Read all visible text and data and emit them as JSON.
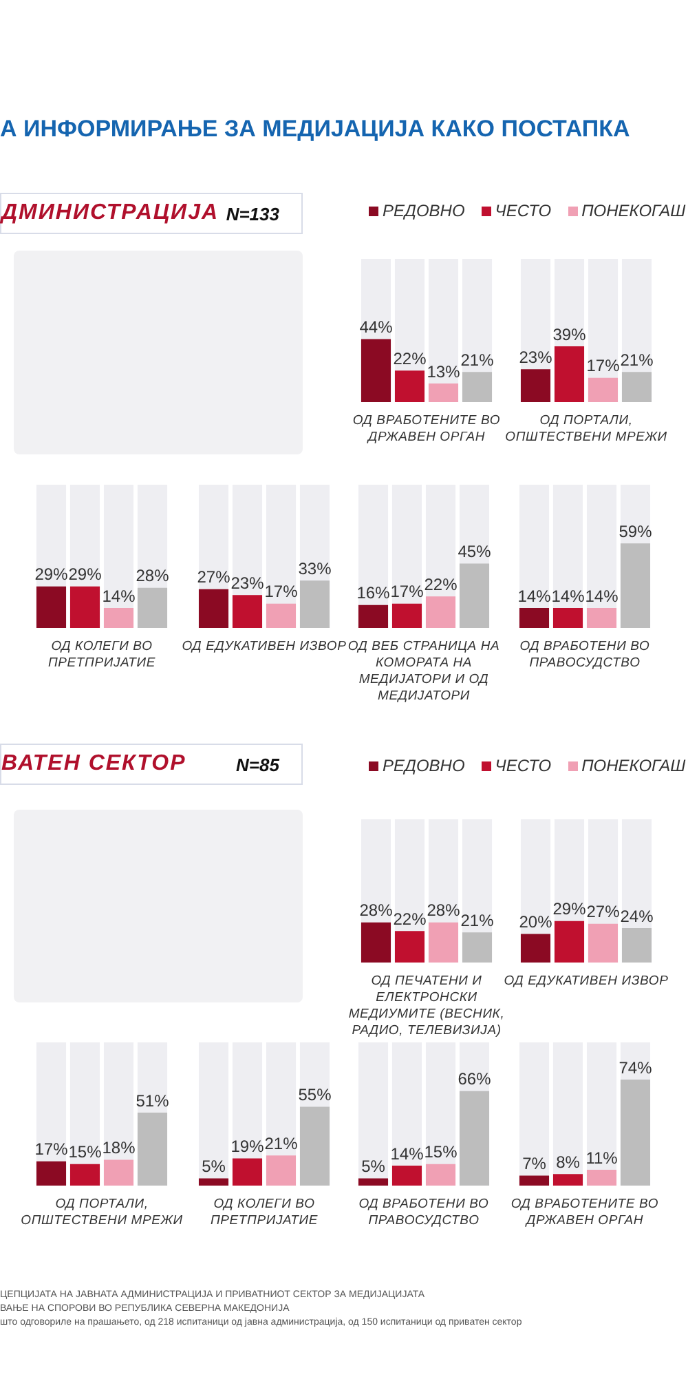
{
  "chart_data": [
    {
      "type": "other",
      "title": "А ИНФОРМИРАЊЕ ЗА МЕДИЈАЦИЈА КАКО ПОСТАПКА"
    },
    {
      "type": "other",
      "title": "ДМИНИСТРАЦИЈА",
      "subtitle": "N=133"
    },
    {
      "type": "bar",
      "xlabel": "ОД ВРАБОТЕНИТЕ ВО ДРЖАВЕН ОРГАН",
      "categories": [
        null
      ],
      "ylim": [
        0,
        100
      ],
      "tick_labels": false,
      "legend": "top",
      "series": [
        {
          "name": "РЕДОВНО",
          "color": "#8b0a23",
          "values": [
            44
          ],
          "value_labels": [
            "44%"
          ]
        },
        {
          "name": "ЧЕСТО",
          "color": "#c0102f",
          "values": [
            22
          ],
          "value_labels": [
            "22%"
          ]
        },
        {
          "name": "ПОНЕКОГАШ",
          "color": "#f0a0b4",
          "values": [
            13
          ],
          "value_labels": [
            "13%"
          ]
        },
        {
          "color": "#bdbdbd",
          "values": [
            21
          ],
          "value_labels": [
            "21%"
          ]
        }
      ]
    },
    {
      "type": "bar",
      "xlabel": "ОД ПОРТАЛИ, ОПШТЕСТВЕНИ МРЕЖИ",
      "categories": [
        null
      ],
      "ylim": [
        0,
        100
      ],
      "tick_labels": false,
      "series": [
        {
          "color": "#8b0a23",
          "values": [
            23
          ],
          "value_labels": [
            "23%"
          ]
        },
        {
          "color": "#c0102f",
          "values": [
            39
          ],
          "value_labels": [
            "39%"
          ]
        },
        {
          "color": "#f0a0b4",
          "values": [
            17
          ],
          "value_labels": [
            "17%"
          ]
        },
        {
          "color": "#bdbdbd",
          "values": [
            21
          ],
          "value_labels": [
            "21%"
          ]
        }
      ]
    },
    {
      "type": "bar",
      "xlabel": "ОД КОЛЕГИ ВО ПРЕТПРИЈАТИЕ",
      "categories": [
        null
      ],
      "ylim": [
        0,
        100
      ],
      "tick_labels": false,
      "series": [
        {
          "color": "#8b0a23",
          "values": [
            29
          ],
          "value_labels": [
            "29%"
          ]
        },
        {
          "color": "#c0102f",
          "values": [
            29
          ],
          "value_labels": [
            "29%"
          ]
        },
        {
          "color": "#f0a0b4",
          "values": [
            14
          ],
          "value_labels": [
            "14%"
          ]
        },
        {
          "color": "#bdbdbd",
          "values": [
            28
          ],
          "value_labels": [
            "28%"
          ]
        }
      ]
    },
    {
      "type": "bar",
      "xlabel": "ОД ЕДУКАТИВЕН ИЗВОР",
      "categories": [
        null
      ],
      "ylim": [
        0,
        100
      ],
      "tick_labels": false,
      "series": [
        {
          "color": "#8b0a23",
          "values": [
            27
          ],
          "value_labels": [
            "27%"
          ]
        },
        {
          "color": "#c0102f",
          "values": [
            23
          ],
          "value_labels": [
            "23%"
          ]
        },
        {
          "color": "#f0a0b4",
          "values": [
            17
          ],
          "value_labels": [
            "17%"
          ]
        },
        {
          "color": "#bdbdbd",
          "values": [
            33
          ],
          "value_labels": [
            "33%"
          ]
        }
      ]
    },
    {
      "type": "bar",
      "xlabel": "ОД ВЕБ СТРАНИЦА НА КОМОРАТА НА МЕДИЈАТОРИ И ОД МЕДИЈАТОРИ",
      "categories": [
        null
      ],
      "ylim": [
        0,
        100
      ],
      "tick_labels": false,
      "series": [
        {
          "color": "#8b0a23",
          "values": [
            16
          ],
          "value_labels": [
            "16%"
          ]
        },
        {
          "color": "#c0102f",
          "values": [
            17
          ],
          "value_labels": [
            "17%"
          ]
        },
        {
          "color": "#f0a0b4",
          "values": [
            22
          ],
          "value_labels": [
            "22%"
          ]
        },
        {
          "color": "#bdbdbd",
          "values": [
            45
          ],
          "value_labels": [
            "45%"
          ]
        }
      ]
    },
    {
      "type": "bar",
      "xlabel": "ОД ВРАБОТЕНИ ВО ПРАВОСУДСТВО",
      "categories": [
        null
      ],
      "ylim": [
        0,
        100
      ],
      "tick_labels": false,
      "series": [
        {
          "color": "#8b0a23",
          "values": [
            14
          ],
          "value_labels": [
            "14%"
          ]
        },
        {
          "color": "#c0102f",
          "values": [
            14
          ],
          "value_labels": [
            "14%"
          ]
        },
        {
          "color": "#f0a0b4",
          "values": [
            14
          ],
          "value_labels": [
            "14%"
          ]
        },
        {
          "color": "#bdbdbd",
          "values": [
            59
          ],
          "value_labels": [
            "59%"
          ]
        }
      ]
    },
    {
      "type": "other",
      "title": "ВАТЕН СЕКТОР",
      "subtitle": "N=85"
    },
    {
      "type": "bar",
      "xlabel": "ОД ПЕЧАТЕНИ И ЕЛЕКТРОНСКИ МЕДИУМИТЕ (ВЕСНИК, РАДИО, ТЕЛЕВИЗИЈА)",
      "categories": [
        null
      ],
      "ylim": [
        0,
        100
      ],
      "tick_labels": false,
      "legend": "top",
      "series": [
        {
          "name": "РЕДОВНО",
          "color": "#8b0a23",
          "values": [
            28
          ],
          "value_labels": [
            "28%"
          ]
        },
        {
          "name": "ЧЕСТО",
          "color": "#c0102f",
          "values": [
            22
          ],
          "value_labels": [
            "22%"
          ]
        },
        {
          "name": "ПОНЕКОГАШ",
          "color": "#f0a0b4",
          "values": [
            28
          ],
          "value_labels": [
            "28%"
          ]
        },
        {
          "color": "#bdbdbd",
          "values": [
            21
          ],
          "value_labels": [
            "21%"
          ]
        }
      ]
    },
    {
      "type": "bar",
      "xlabel": "ОД ЕДУКАТИВЕН ИЗВОР",
      "categories": [
        null
      ],
      "ylim": [
        0,
        100
      ],
      "tick_labels": false,
      "series": [
        {
          "color": "#8b0a23",
          "values": [
            20
          ],
          "value_labels": [
            "20%"
          ]
        },
        {
          "color": "#c0102f",
          "values": [
            29
          ],
          "value_labels": [
            "29%"
          ]
        },
        {
          "color": "#f0a0b4",
          "values": [
            27
          ],
          "value_labels": [
            "27%"
          ]
        },
        {
          "color": "#bdbdbd",
          "values": [
            24
          ],
          "value_labels": [
            "24%"
          ]
        }
      ]
    },
    {
      "type": "bar",
      "xlabel": "ОД ПОРТАЛИ, ОПШТЕСТВЕНИ МРЕЖИ",
      "categories": [
        null
      ],
      "ylim": [
        0,
        100
      ],
      "tick_labels": false,
      "series": [
        {
          "color": "#8b0a23",
          "values": [
            17
          ],
          "value_labels": [
            "17%"
          ]
        },
        {
          "color": "#c0102f",
          "values": [
            15
          ],
          "value_labels": [
            "15%"
          ]
        },
        {
          "color": "#f0a0b4",
          "values": [
            18
          ],
          "value_labels": [
            "18%"
          ]
        },
        {
          "color": "#bdbdbd",
          "values": [
            51
          ],
          "value_labels": [
            "51%"
          ]
        }
      ]
    },
    {
      "type": "bar",
      "xlabel": "ОД КОЛЕГИ ВО ПРЕТПРИЈАТИЕ",
      "categories": [
        null
      ],
      "ylim": [
        0,
        100
      ],
      "tick_labels": false,
      "series": [
        {
          "color": "#8b0a23",
          "values": [
            5
          ],
          "value_labels": [
            "5%"
          ]
        },
        {
          "color": "#c0102f",
          "values": [
            19
          ],
          "value_labels": [
            "19%"
          ]
        },
        {
          "color": "#f0a0b4",
          "values": [
            21
          ],
          "value_labels": [
            "21%"
          ]
        },
        {
          "color": "#bdbdbd",
          "values": [
            55
          ],
          "value_labels": [
            "55%"
          ]
        }
      ]
    },
    {
      "type": "bar",
      "xlabel": "ОД ВРАБОТЕНИ ВО ПРАВОСУДСТВО",
      "categories": [
        null
      ],
      "ylim": [
        0,
        100
      ],
      "tick_labels": false,
      "series": [
        {
          "color": "#8b0a23",
          "values": [
            5
          ],
          "value_labels": [
            "5%"
          ]
        },
        {
          "color": "#c0102f",
          "values": [
            14
          ],
          "value_labels": [
            "14%"
          ]
        },
        {
          "color": "#f0a0b4",
          "values": [
            15
          ],
          "value_labels": [
            "15%"
          ]
        },
        {
          "color": "#bdbdbd",
          "values": [
            66
          ],
          "value_labels": [
            "66%"
          ]
        }
      ]
    },
    {
      "type": "bar",
      "xlabel": "ОД ВРАБОТЕНИТЕ ВО ДРЖАВЕН ОРГАН",
      "categories": [
        null
      ],
      "ylim": [
        0,
        100
      ],
      "tick_labels": false,
      "series": [
        {
          "color": "#8b0a23",
          "values": [
            7
          ],
          "value_labels": [
            "7%"
          ]
        },
        {
          "color": "#c0102f",
          "values": [
            8
          ],
          "value_labels": [
            "8%"
          ]
        },
        {
          "color": "#f0a0b4",
          "values": [
            11
          ],
          "value_labels": [
            "11%"
          ]
        },
        {
          "color": "#bdbdbd",
          "values": [
            74
          ],
          "value_labels": [
            "74%"
          ]
        }
      ]
    },
    {
      "type": "other",
      "annotations": [
        "ЦЕПЦИЈАТА НА ЈАВНАТА АДМИНИСТРАЦИЈА И ПРИВАТНИОТ СЕКТОР ЗА МЕДИЈАЦИЈАТА",
        "ВАЊЕ НА СПОРОВИ ВО РЕПУБЛИКА СЕВЕРНА МАКЕДОНИЈА",
        "што одговориле на прашањето, од 218 испитаници од јавна администрација, од 150 испитаници од приватен сектор"
      ]
    }
  ]
}
